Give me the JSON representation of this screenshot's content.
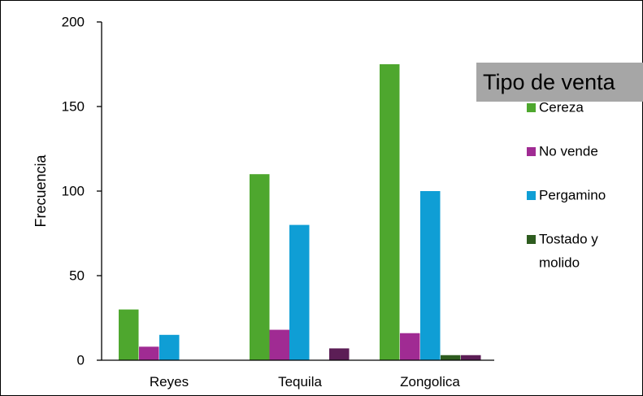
{
  "chart_data": {
    "type": "bar",
    "categories": [
      "Reyes",
      "Tequila",
      "Zongolica"
    ],
    "ylabel": "Frecuencia",
    "xlabel": "",
    "ylim": [
      0,
      200
    ],
    "yticks": [
      0,
      50,
      100,
      150,
      200
    ],
    "grid": false,
    "legend": {
      "title": "Tipo de venta",
      "position": "right",
      "title_background": "#a6a6a6"
    },
    "series": [
      {
        "name": "Cereza",
        "color": "#4ea72e",
        "values": [
          30,
          110,
          175
        ]
      },
      {
        "name": "No vende",
        "color": "#a02b93",
        "values": [
          8,
          18,
          16
        ]
      },
      {
        "name": "Pergamino",
        "color": "#0f9ed5",
        "values": [
          15,
          80,
          100
        ]
      },
      {
        "name": "Tostado y molido",
        "color": "#2e5c1f",
        "values": [
          0,
          0,
          3
        ]
      },
      {
        "name": "",
        "color": "#5c1e56",
        "values": [
          0,
          7,
          3
        ]
      }
    ]
  }
}
